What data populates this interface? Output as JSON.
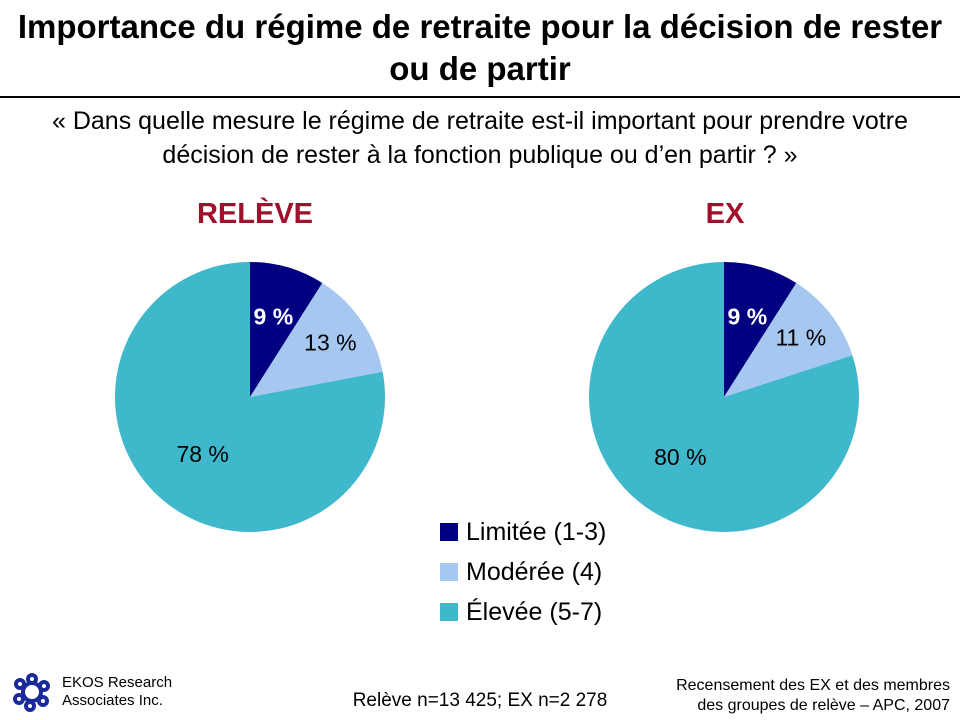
{
  "title": "Importance du régime de retraite pour la décision de rester ou de partir",
  "question": "« Dans quelle mesure le régime de retraite est-il important pour prendre votre décision de rester à la fonction publique ou d’en partir ? »",
  "chart_data": [
    {
      "type": "pie",
      "title": "RELÈVE",
      "categories": [
        "Limitée (1-3)",
        "Modérée (4)",
        "Élevée (5-7)"
      ],
      "values": [
        9,
        13,
        78
      ],
      "labels": [
        "9 %",
        "13 %",
        "78 %"
      ]
    },
    {
      "type": "pie",
      "title": "EX",
      "categories": [
        "Limitée (1-3)",
        "Modérée (4)",
        "Élevée (5-7)"
      ],
      "values": [
        9,
        11,
        80
      ],
      "labels": [
        "9 %",
        "11 %",
        "80 %"
      ]
    }
  ],
  "colors": [
    "#000080",
    "#a6c8f0",
    "#40b8cc"
  ],
  "legend": [
    "Limitée (1-3)",
    "Modérée (4)",
    "Élevée (5-7)"
  ],
  "footer": {
    "logo_text": [
      "EKOS Research",
      "Associates Inc."
    ],
    "sample": "Relève n=13 425; EX n=2 278",
    "source": [
      "Recensement des EX et des membres",
      "des groupes de relève – APC, 2007"
    ]
  }
}
